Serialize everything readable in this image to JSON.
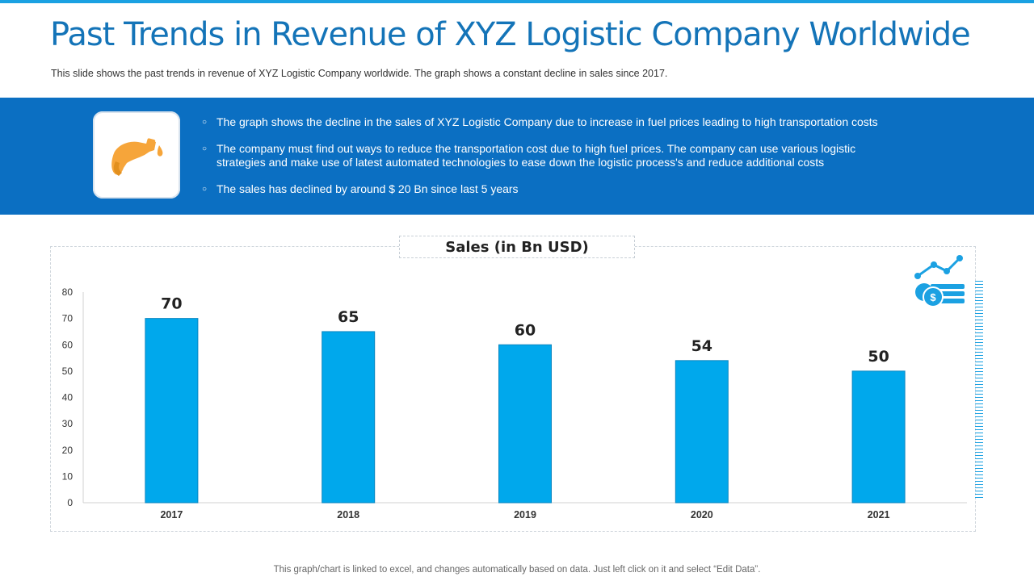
{
  "header": {
    "title": "Past Trends in Revenue of XYZ Logistic Company Worldwide",
    "subtitle": "This slide shows the past trends in revenue  of XYZ  Logistic Company worldwide.  The graph  shows a constant decline in sales since 2017."
  },
  "band": {
    "icon": "fuel-nozzle-icon",
    "bullets": [
      "The graph shows the decline in the sales of XYZ  Logistic Company due to increase in fuel prices leading to high transportation costs",
      "The company must find out ways to reduce the transportation cost due to high fuel prices. The company can use various logistic strategies and make use of latest automated technologies to ease down the logistic process's and reduce additional costs",
      "The sales has declined by around $ 20 Bn since last 5 years"
    ]
  },
  "colors": {
    "accent": "#1474b8",
    "band": "#0b6fc2",
    "bar": "#00a8ec",
    "fuel": "#f6a53a"
  },
  "chart_data": {
    "type": "bar",
    "title": "Sales (in Bn USD)",
    "categories": [
      "2017",
      "2018",
      "2019",
      "2020",
      "2021"
    ],
    "values": [
      70,
      65,
      60,
      54,
      50
    ],
    "ylim": [
      0,
      80
    ],
    "yticks": [
      0,
      10,
      20,
      30,
      40,
      50,
      60,
      70,
      80
    ],
    "xlabel": "",
    "ylabel": "",
    "grid": false,
    "legend": "none"
  },
  "footer": "This graph/chart is linked to excel,  and changes automatically based on data. Just left click on it and select “Edit Data”."
}
